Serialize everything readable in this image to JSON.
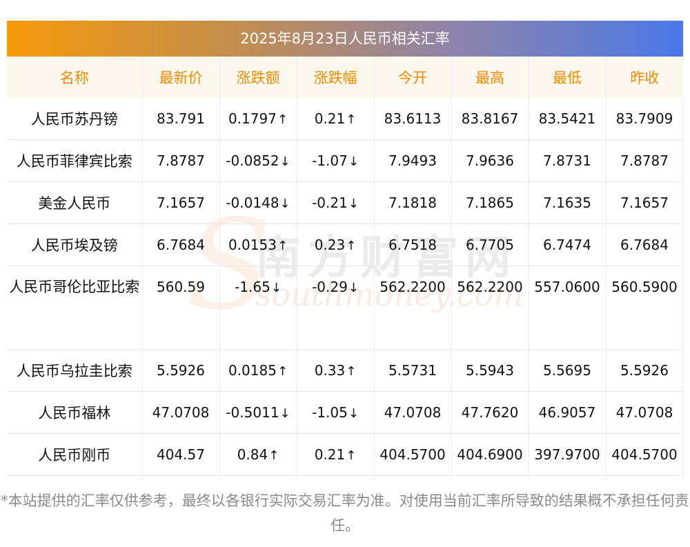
{
  "title": "2025年8月23日人民币相关汇率",
  "columns": [
    "名称",
    "最新价",
    "涨跌额",
    "涨跌幅",
    "今开",
    "最高",
    "最低",
    "昨收"
  ],
  "rows": [
    {
      "name": "人民币苏丹镑",
      "latest": "83.791",
      "change": "0.1797",
      "pct": "0.21",
      "dir": "up",
      "open": "83.6113",
      "high": "83.8167",
      "low": "83.5421",
      "prev": "83.7909"
    },
    {
      "name": "人民币菲律宾比索",
      "latest": "7.8787",
      "change": "-0.0852",
      "pct": "-1.07",
      "dir": "down",
      "open": "7.9493",
      "high": "7.9636",
      "low": "7.8731",
      "prev": "7.8787"
    },
    {
      "name": "美金人民币",
      "latest": "7.1657",
      "change": "-0.0148",
      "pct": "-0.21",
      "dir": "down",
      "open": "7.1818",
      "high": "7.1865",
      "low": "7.1635",
      "prev": "7.1657"
    },
    {
      "name": "人民币埃及镑",
      "latest": "6.7684",
      "change": "0.0153",
      "pct": "0.23",
      "dir": "up",
      "open": "6.7518",
      "high": "6.7705",
      "low": "6.7474",
      "prev": "6.7684"
    },
    {
      "name": "人民币哥伦比亚比索",
      "latest": "560.59",
      "change": "-1.65",
      "pct": "-0.29",
      "dir": "down",
      "open": "562.2200",
      "high": "562.2200",
      "low": "557.0600",
      "prev": "560.5900"
    },
    {
      "name": "人民币乌拉圭比索",
      "latest": "5.5926",
      "change": "0.0185",
      "pct": "0.33",
      "dir": "up",
      "open": "5.5731",
      "high": "5.5943",
      "low": "5.5695",
      "prev": "5.5926"
    },
    {
      "name": "人民币福林",
      "latest": "47.0708",
      "change": "-0.5011",
      "pct": "-1.05",
      "dir": "down",
      "open": "47.0708",
      "high": "47.7620",
      "low": "46.9057",
      "prev": "47.0708"
    },
    {
      "name": "人民币刚币",
      "latest": "404.57",
      "change": "0.84",
      "pct": "0.21",
      "dir": "up",
      "open": "404.5700",
      "high": "404.6900",
      "low": "397.9700",
      "prev": "404.5700"
    }
  ],
  "arrows": {
    "up": "↑",
    "down": "↓"
  },
  "colors": {
    "up": "#e8191c",
    "down": "#1a8a1a",
    "header_text": "#f08a00"
  },
  "watermark": {
    "cn": "南方财富网",
    "en": "southmoney.com",
    "s": "S"
  },
  "disclaimer": "*本站提供的汇率仅供参考，最终以各银行实际交易汇率为准。对使用当前汇率所导致的结果概不承担任何责任。"
}
